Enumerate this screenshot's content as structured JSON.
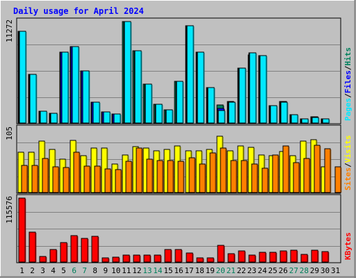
{
  "chart_data": {
    "type": "bar",
    "title": "Daily usage for April 2024",
    "days": [
      "1",
      "2",
      "3",
      "4",
      "5",
      "6",
      "7",
      "8",
      "9",
      "10",
      "11",
      "12",
      "13",
      "14",
      "15",
      "16",
      "17",
      "18",
      "19",
      "20",
      "21",
      "22",
      "23",
      "24",
      "25",
      "26",
      "27",
      "28",
      "29",
      "30",
      "31"
    ],
    "weekend_days": [
      "6",
      "7",
      "13",
      "14",
      "20",
      "21",
      "27",
      "28"
    ],
    "panels": [
      {
        "id": "hits-files-pages",
        "max_label": "11272",
        "ymax": 11272,
        "legend": [
          "Pages",
          "Files",
          "Hits"
        ],
        "series": [
          {
            "name": "Hits",
            "color": "#00805c",
            "values": [
              10200,
              5400,
              1300,
              1100,
              7900,
              8500,
              5800,
              2300,
              1200,
              1000,
              11272,
              8000,
              4300,
              2100,
              1500,
              4600,
              10800,
              7900,
              3900,
              2000,
              2400,
              6100,
              7600,
              7500,
              1900,
              2400,
              900,
              500,
              700,
              500,
              0
            ]
          },
          {
            "name": "Files",
            "color": "#0000ff",
            "values": [
              10200,
              5400,
              1300,
              1100,
              7900,
              8500,
              5800,
              2300,
              1200,
              1000,
              11272,
              8000,
              4300,
              2100,
              1500,
              4600,
              10800,
              7900,
              3900,
              1600,
              2300,
              6100,
              7800,
              7500,
              1900,
              2400,
              900,
              500,
              700,
              500,
              0
            ]
          },
          {
            "name": "Pages",
            "color": "#00e8ff",
            "values": [
              10200,
              5400,
              1300,
              1100,
              7900,
              8500,
              5800,
              2300,
              1200,
              1000,
              11272,
              8000,
              4300,
              2100,
              1500,
              4600,
              10800,
              7900,
              3900,
              1400,
              2300,
              6100,
              7800,
              7500,
              1900,
              2300,
              900,
              500,
              600,
              500,
              0
            ]
          }
        ]
      },
      {
        "id": "visits-sites",
        "max_label": "105",
        "ymax": 105,
        "legend": [
          "Sites",
          "Visits"
        ],
        "series": [
          {
            "name": "Visits",
            "color": "#ffff00",
            "values": [
              66,
              66,
              85,
              71,
              55,
              86,
              61,
              73,
              73,
              47,
              62,
              75,
              73,
              69,
              71,
              77,
              69,
              68,
              71,
              93,
              68,
              76,
              74,
              62,
              60,
              67,
              60,
              84,
              87,
              42,
              0
            ]
          },
          {
            "name": "Sites",
            "color": "#ff8000",
            "values": [
              44,
              45,
              56,
              42,
              41,
              66,
              43,
              43,
              39,
              38,
              51,
              73,
              55,
              52,
              52,
              51,
              57,
              47,
              65,
              73,
              52,
              53,
              47,
              40,
              62,
              76,
              49,
              56,
              78,
              72,
              42
            ]
          }
        ]
      },
      {
        "id": "kbytes",
        "max_label": "115576",
        "ymax": 115576,
        "legend": [
          "KBytes"
        ],
        "series": [
          {
            "name": "KBytes",
            "color": "#ff0000",
            "values": [
              115576,
              54000,
              10000,
              22000,
              35000,
              48000,
              43000,
              46000,
              8000,
              9000,
              12000,
              12000,
              12000,
              12000,
              22000,
              22000,
              16000,
              7500,
              7000,
              30000,
              15000,
              20000,
              12000,
              17000,
              17000,
              20000,
              21000,
              14000,
              21000,
              19000,
              0
            ]
          }
        ]
      }
    ],
    "colors": {
      "hits": "#00805c",
      "files": "#0000ff",
      "pages": "#00e8ff",
      "visits": "#ffff00",
      "sites": "#ff8000",
      "kbytes": "#ff0000",
      "title": "#0000ff",
      "weekend_label": "#00805c",
      "background": "#c0c0c0",
      "grid": "#808080"
    }
  }
}
